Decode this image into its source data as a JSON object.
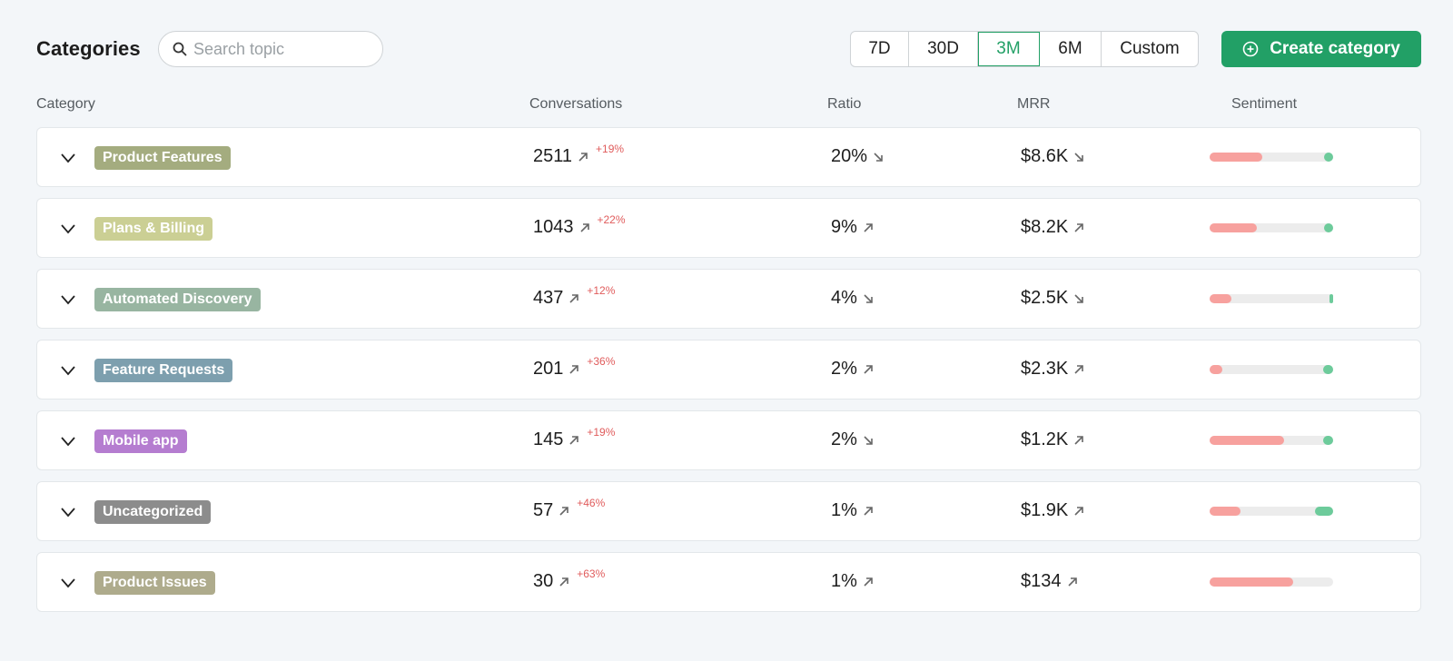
{
  "header": {
    "title": "Categories",
    "search_placeholder": "Search topic",
    "ranges": [
      "7D",
      "30D",
      "3M",
      "6M",
      "Custom"
    ],
    "active_range": "3M",
    "create_label": "Create category"
  },
  "columns": {
    "category": "Category",
    "conversations": "Conversations",
    "ratio": "Ratio",
    "mrr": "MRR",
    "sentiment": "Sentiment"
  },
  "colors": {
    "accent": "#22a066",
    "negative": "#f7a19e",
    "positive": "#6dcb9b",
    "delta": "#e05c5c"
  },
  "rows": [
    {
      "name": "Product Features",
      "color": "#a4ac7f",
      "conversations": "2511",
      "conv_trend": "up",
      "delta": "+19%",
      "ratio": "20%",
      "ratio_trend": "down",
      "mrr": "$8.6K",
      "mrr_trend": "down",
      "sent_neg": 0.43,
      "sent_pos": 0.07
    },
    {
      "name": "Plans & Billing",
      "color": "#cbcf94",
      "conversations": "1043",
      "conv_trend": "up",
      "delta": "+22%",
      "ratio": "9%",
      "ratio_trend": "up",
      "mrr": "$8.2K",
      "mrr_trend": "up",
      "sent_neg": 0.38,
      "sent_pos": 0.07
    },
    {
      "name": "Automated Discovery",
      "color": "#98b5a1",
      "conversations": "437",
      "conv_trend": "up",
      "delta": "+12%",
      "ratio": "4%",
      "ratio_trend": "down",
      "mrr": "$2.5K",
      "mrr_trend": "down",
      "sent_neg": 0.18,
      "sent_pos": 0.03
    },
    {
      "name": "Feature Requests",
      "color": "#7d9fae",
      "conversations": "201",
      "conv_trend": "up",
      "delta": "+36%",
      "ratio": "2%",
      "ratio_trend": "up",
      "mrr": "$2.3K",
      "mrr_trend": "up",
      "sent_neg": 0.1,
      "sent_pos": 0.08
    },
    {
      "name": "Mobile app",
      "color": "#b57dd0",
      "conversations": "145",
      "conv_trend": "up",
      "delta": "+19%",
      "ratio": "2%",
      "ratio_trend": "down",
      "mrr": "$1.2K",
      "mrr_trend": "up",
      "sent_neg": 0.6,
      "sent_pos": 0.08
    },
    {
      "name": "Uncategorized",
      "color": "#8c8c8c",
      "conversations": "57",
      "conv_trend": "up",
      "delta": "+46%",
      "ratio": "1%",
      "ratio_trend": "up",
      "mrr": "$1.9K",
      "mrr_trend": "up",
      "sent_neg": 0.25,
      "sent_pos": 0.15
    },
    {
      "name": "Product Issues",
      "color": "#aeab8c",
      "conversations": "30",
      "conv_trend": "up",
      "delta": "+63%",
      "ratio": "1%",
      "ratio_trend": "up",
      "mrr": "$134",
      "mrr_trend": "up",
      "sent_neg": 0.68,
      "sent_pos": 0
    }
  ]
}
